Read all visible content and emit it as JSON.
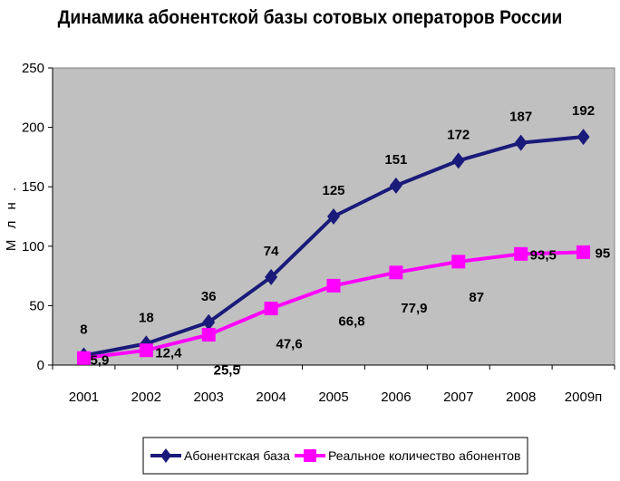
{
  "chart_data": {
    "type": "line",
    "title": "Динамика абонентской базы сотовых операторов России",
    "xlabel": "",
    "ylabel": "М л н .",
    "categories": [
      "2001",
      "2002",
      "2003",
      "2004",
      "2005",
      "2006",
      "2007",
      "2008",
      "2009п"
    ],
    "ylim": [
      0,
      250
    ],
    "yticks": [
      "0",
      "50",
      "100",
      "150",
      "200",
      "250"
    ],
    "grid": false,
    "legend_position": "bottom",
    "series": [
      {
        "name": "Абонентская база",
        "color": "#1a1a7a",
        "marker": "diamond",
        "values": [
          8,
          18,
          36,
          74,
          125,
          151,
          172,
          187,
          192
        ],
        "labels": [
          "8",
          "18",
          "36",
          "74",
          "125",
          "151",
          "172",
          "187",
          "192"
        ]
      },
      {
        "name": "Реальное количество абонентов",
        "color": "#ff00ff",
        "marker": "square",
        "values": [
          5.9,
          12.4,
          25.5,
          47.6,
          66.8,
          77.9,
          87,
          93.5,
          95
        ],
        "labels": [
          "5,9",
          "12,4",
          "25,5",
          "47,6",
          "66,8",
          "77,9",
          "87",
          "93,5",
          "95"
        ]
      }
    ],
    "plot_background": "#c0c0c0"
  }
}
